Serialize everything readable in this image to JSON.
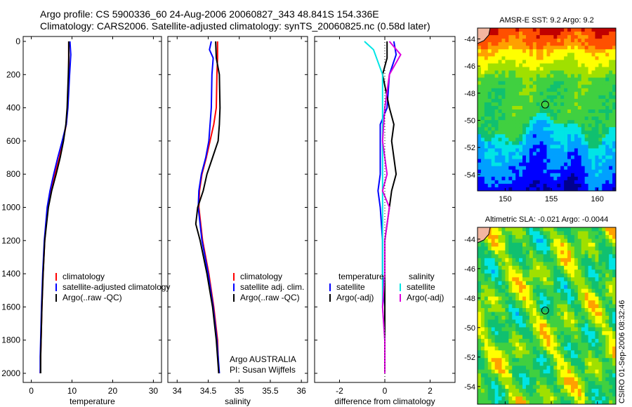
{
  "header": {
    "line1": "Argo profile: CS 5900336_60 24-Aug-2006 20060827_343 48.841S 154.336E",
    "line2": "Climatology: CARS2006. Satellite-adjusted climatology: synTS_20060825.nc (0.58d later)"
  },
  "side_label": "CSIRO 01-Sep-2006 08:32:46",
  "chart_data": [
    {
      "type": "line",
      "id": "temperature",
      "xlabel": "temperature",
      "ylabel": "",
      "xlim": [
        -2,
        32
      ],
      "ylim": [
        2000,
        0
      ],
      "x_ticks": [
        "0",
        "10",
        "20",
        "30"
      ],
      "x_tick_values": [
        0,
        10,
        20,
        30
      ],
      "y_ticks": [
        "0",
        "200",
        "400",
        "600",
        "800",
        "1000",
        "1200",
        "1400",
        "1600",
        "1800",
        "2000"
      ],
      "y_tick_values": [
        0,
        200,
        400,
        600,
        800,
        1000,
        1200,
        1400,
        1600,
        1800,
        2000
      ],
      "legend": {
        "position": "bottom-right",
        "entries": [
          "climatology",
          "satellite-adjusted climatology",
          "Argo(..raw -QC)"
        ]
      },
      "series": [
        {
          "name": "climatology",
          "color": "#ff0000",
          "x": [
            9.2,
            9.2,
            9.2,
            8.9,
            8.6,
            7.8,
            6.9,
            5.8,
            4.8,
            4.0,
            3.3,
            2.9,
            2.6,
            2.4,
            2.3,
            2.2
          ],
          "y": [
            0,
            100,
            200,
            400,
            500,
            600,
            700,
            800,
            900,
            1000,
            1200,
            1400,
            1600,
            1800,
            1900,
            2000
          ]
        },
        {
          "name": "satellite-adjusted climatology",
          "color": "#0000ff",
          "x": [
            9.5,
            9.7,
            9.4,
            9.0,
            8.6,
            7.6,
            6.5,
            5.5,
            4.6,
            3.9,
            3.2,
            2.8,
            2.5,
            2.3,
            2.2,
            2.2
          ],
          "y": [
            0,
            80,
            200,
            400,
            500,
            600,
            700,
            800,
            900,
            1000,
            1200,
            1400,
            1600,
            1800,
            1900,
            2000
          ]
        },
        {
          "name": "Argo(..raw -QC)",
          "color": "#000000",
          "x": [
            9.2,
            9.2,
            9.1,
            8.8,
            8.5,
            7.9,
            7.1,
            6.1,
            5.0,
            4.2,
            3.3,
            2.9,
            2.6,
            2.4,
            2.3,
            2.3
          ],
          "y": [
            0,
            100,
            200,
            400,
            500,
            600,
            700,
            800,
            900,
            1000,
            1200,
            1400,
            1600,
            1800,
            1900,
            2000
          ]
        }
      ]
    },
    {
      "type": "line",
      "id": "salinity",
      "xlabel": "salinity",
      "ylabel": "",
      "xlim": [
        33.85,
        36.1
      ],
      "ylim": [
        2000,
        0
      ],
      "x_ticks": [
        "34",
        "34.5",
        "35",
        "35.5",
        "36"
      ],
      "x_tick_values": [
        34,
        34.5,
        35,
        35.5,
        36
      ],
      "legend": {
        "position": "bottom-right",
        "entries": [
          "climatology",
          "satellite adj. clim.",
          "Argo(..raw -QC)"
        ]
      },
      "annotation": [
        "Argo AUSTRALIA",
        "PI: Susan Wijffels"
      ],
      "series": [
        {
          "name": "climatology",
          "color": "#ff0000",
          "x": [
            34.65,
            34.65,
            34.64,
            34.63,
            34.59,
            34.53,
            34.47,
            34.4,
            34.36,
            34.35,
            34.41,
            34.51,
            34.59,
            34.65,
            34.67
          ],
          "y": [
            0,
            100,
            200,
            400,
            500,
            600,
            700,
            800,
            900,
            1000,
            1200,
            1400,
            1600,
            1800,
            2000
          ]
        },
        {
          "name": "satellite adj. clim.",
          "color": "#0000ff",
          "x": [
            34.55,
            34.52,
            34.58,
            34.56,
            34.55,
            34.51,
            34.46,
            34.39,
            34.35,
            34.34,
            34.4,
            34.5,
            34.58,
            34.64,
            34.68
          ],
          "y": [
            0,
            50,
            100,
            200,
            400,
            600,
            700,
            800,
            900,
            1000,
            1200,
            1400,
            1600,
            1800,
            2000
          ]
        },
        {
          "name": "Argo(..raw -QC)",
          "color": "#000000",
          "x": [
            34.62,
            34.63,
            34.68,
            34.69,
            34.68,
            34.66,
            34.57,
            34.48,
            34.42,
            34.33,
            34.3,
            34.37,
            34.48,
            34.57,
            34.63,
            34.67
          ],
          "y": [
            0,
            100,
            200,
            400,
            500,
            600,
            700,
            800,
            900,
            1000,
            1100,
            1200,
            1400,
            1600,
            1800,
            2000
          ]
        }
      ]
    },
    {
      "type": "line",
      "id": "difference",
      "xlabel": "difference from climatology",
      "ylabel": "",
      "xlim": [
        -3.1,
        3.1
      ],
      "ylim": [
        2000,
        0
      ],
      "x_ticks": [
        "-2",
        "0",
        "2"
      ],
      "x_tick_values": [
        -2,
        0,
        2
      ],
      "legend": {
        "position": "bottom",
        "groups": [
          {
            "heading": "temperature",
            "entries": [
              "satellite",
              "Argo(-adj)"
            ]
          },
          {
            "heading": "salinity",
            "entries": [
              "satellite",
              "Argo(-adj)"
            ]
          }
        ]
      },
      "series": [
        {
          "name": "temperature satellite",
          "color": "#0000ff",
          "x": [
            0.4,
            0.5,
            0.2,
            0.1,
            -0.2,
            -0.2,
            -0.2,
            -0.3,
            -0.2,
            -0.1,
            -0.1,
            0.0,
            0.0,
            0.0
          ],
          "y": [
            0,
            80,
            200,
            400,
            500,
            600,
            800,
            900,
            1000,
            1200,
            1400,
            1600,
            1800,
            2000
          ]
        },
        {
          "name": "temperature Argo(-adj)",
          "color": "#000000",
          "x": [
            0.1,
            0.1,
            -0.1,
            0.2,
            0.4,
            0.3,
            0.5,
            0.3,
            0.2,
            0.0,
            0.0,
            0.0,
            0.0,
            0.0
          ],
          "y": [
            0,
            100,
            200,
            400,
            500,
            600,
            800,
            900,
            1000,
            1200,
            1400,
            1600,
            1800,
            2000
          ]
        },
        {
          "name": "salinity satellite",
          "color": "#00e5e5",
          "x": [
            -0.9,
            -0.5,
            -0.1,
            -0.1,
            -0.1,
            -0.1,
            -0.1,
            -0.1,
            -0.1,
            -0.1,
            -0.1,
            0.0,
            0.0
          ],
          "y": [
            0,
            50,
            200,
            400,
            600,
            800,
            900,
            1000,
            1200,
            1400,
            1600,
            1800,
            2000
          ]
        },
        {
          "name": "salinity Argo(-adj)",
          "color": "#dd00dd",
          "x": [
            0.2,
            0.7,
            0.2,
            0.0,
            -0.1,
            0.1,
            -0.1,
            0.2,
            0.0,
            0.0,
            -0.1,
            0.0,
            0.0
          ],
          "y": [
            0,
            80,
            200,
            400,
            600,
            800,
            900,
            1000,
            1200,
            1400,
            1600,
            1800,
            2000
          ]
        }
      ]
    },
    {
      "type": "heatmap",
      "id": "sst-map",
      "title": "AMSR-E SST: 9.2 Argo: 9.2",
      "xlim": [
        147,
        162
      ],
      "ylim": [
        -55,
        -43
      ],
      "x_ticks": [
        "150",
        "155",
        "160"
      ],
      "x_tick_values": [
        150,
        155,
        160
      ],
      "y_ticks": [
        "-44",
        "-46",
        "-48",
        "-50",
        "-52",
        "-54"
      ],
      "y_tick_values": [
        -44,
        -46,
        -48,
        -50,
        -52,
        -54
      ],
      "marker": {
        "lon": 154.336,
        "lat": -48.841
      },
      "colors": [
        "#00008f",
        "#0000ff",
        "#00a0ff",
        "#00e5e5",
        "#10c070",
        "#40d040",
        "#a0e000",
        "#ffff00",
        "#ffa000",
        "#ff5000",
        "#c00000"
      ]
    },
    {
      "type": "heatmap",
      "id": "sla-map",
      "title": "Altimetric SLA: -0.021 Argo: -0.0044",
      "xlim": [
        147,
        162
      ],
      "ylim": [
        -55,
        -43
      ],
      "x_ticks": [
        "150",
        "155",
        "160"
      ],
      "x_tick_values": [
        150,
        155,
        160
      ],
      "y_ticks": [
        "-44",
        "-46",
        "-48",
        "-50",
        "-52",
        "-54"
      ],
      "y_tick_values": [
        -44,
        -46,
        -48,
        -50,
        -52,
        -54
      ],
      "marker": {
        "lon": 154.336,
        "lat": -48.841
      },
      "colors": [
        "#0000ff",
        "#00a0ff",
        "#00e5e5",
        "#10c070",
        "#40d040",
        "#a0e000",
        "#ffff00",
        "#ffa000",
        "#ff5000"
      ]
    }
  ]
}
